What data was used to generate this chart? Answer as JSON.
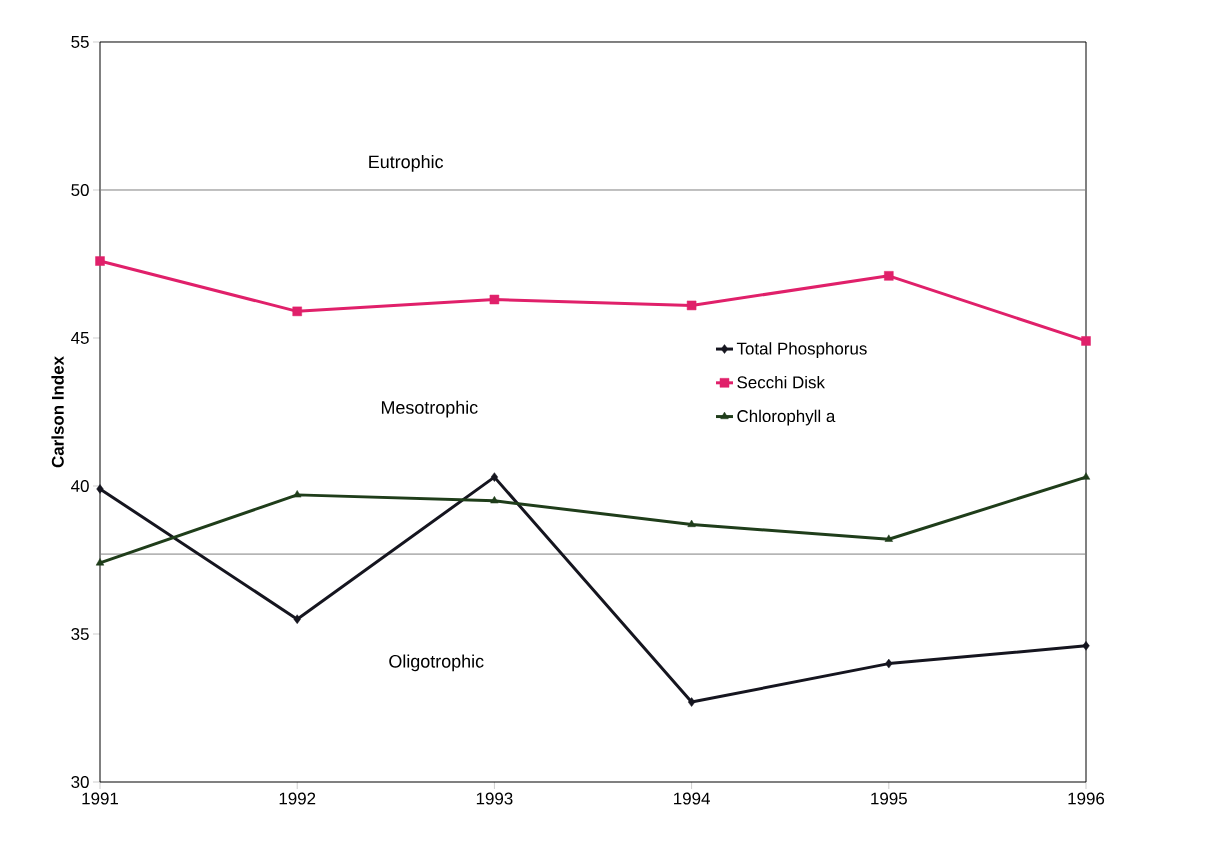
{
  "chart_data": {
    "type": "line",
    "ylabel": "Carlson Index",
    "x": [
      1991,
      1992,
      1993,
      1994,
      1995,
      1996
    ],
    "xlim": [
      1991,
      1996
    ],
    "xticks": [
      1991,
      1992,
      1993,
      1994,
      1995,
      1996
    ],
    "ylim": [
      30,
      55
    ],
    "yticks": [
      30,
      35,
      40,
      45,
      50,
      55
    ],
    "grid": false,
    "legend": "right",
    "series": [
      {
        "name": "Total Phosphorus",
        "color": "#15151f",
        "marker": "diamond",
        "values": [
          39.9,
          35.5,
          40.3,
          32.7,
          34.0,
          34.6
        ]
      },
      {
        "name": "Secchi Disk",
        "color": "#e0206a",
        "marker": "square",
        "values": [
          47.6,
          45.9,
          46.3,
          46.1,
          47.1,
          44.9
        ]
      },
      {
        "name": "Chlorophyll a",
        "color": "#1f3d1a",
        "marker": "triangle",
        "values": [
          37.4,
          39.7,
          39.5,
          38.7,
          38.2,
          40.3
        ]
      }
    ],
    "ref_lines": [
      {
        "axis": "y",
        "value": 50,
        "color": "#808080"
      },
      {
        "axis": "y",
        "value": 37.7,
        "color": "#808080"
      }
    ],
    "annotations": [
      "Eutrophic",
      "Mesotrophic",
      "Oligotrophic"
    ]
  }
}
